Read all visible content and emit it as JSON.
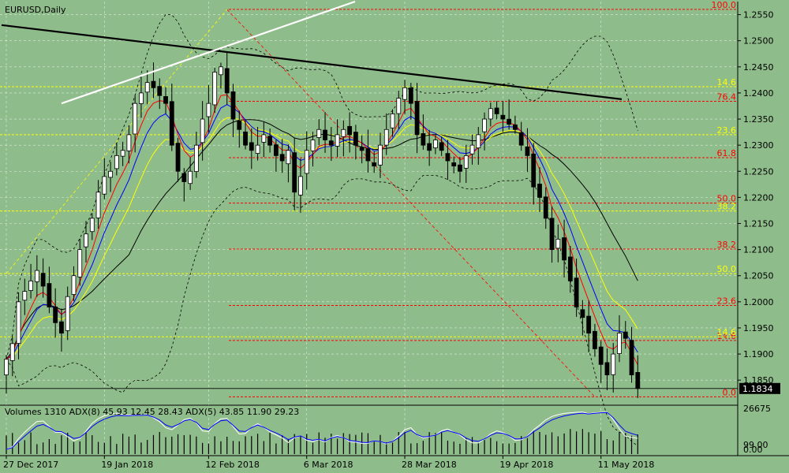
{
  "header": {
    "symbol_label": "EURUSD,Daily"
  },
  "indicator_header": {
    "text": "Volumes 1310 ADX(8) 45.93 12.45 28.43 ADX(5) 43.85 11.90 29.23"
  },
  "colors": {
    "background": "#8fbc8b",
    "grid": "#ffffff",
    "candle": "#000000",
    "ema_red": "#ff0000",
    "ema_blue": "#0000ff",
    "ema_yellow": "#ffff00",
    "sma_black": "#000000",
    "bollinger": "#000000",
    "fibo_red": "#ff0000",
    "fibo_yellow": "#ffff00",
    "trend_black": "#000000",
    "trend_white": "#ffffff",
    "price_label_bg": "#000000",
    "adx_white": "#ffffff",
    "adx_blue": "#0000ff"
  },
  "chart_data": {
    "type": "candlestick",
    "title": "EURUSD,Daily",
    "ylim": [
      1.1805,
      1.2575
    ],
    "price_ticks": [
      "1.2550",
      "1.2500",
      "1.2450",
      "1.2400",
      "1.2350",
      "1.2300",
      "1.2250",
      "1.2200",
      "1.2150",
      "1.2100",
      "1.2050",
      "1.2000",
      "1.1950",
      "1.1900",
      "1.1850"
    ],
    "x_ticks": [
      {
        "index": 0,
        "label": "27 Dec 2017"
      },
      {
        "index": 16,
        "label": "19 Jan 2018"
      },
      {
        "index": 33,
        "label": "12 Feb 2018"
      },
      {
        "index": 49,
        "label": "6 Mar 2018"
      },
      {
        "index": 65,
        "label": "28 Mar 2018"
      },
      {
        "index": 81,
        "label": "19 Apr 2018"
      },
      {
        "index": 97,
        "label": "11 May 2018"
      }
    ],
    "current_price": "1.1834",
    "closes": [
      1.189,
      1.192,
      1.2,
      1.202,
      1.204,
      1.206,
      1.203,
      1.199,
      1.196,
      1.194,
      1.201,
      1.205,
      1.21,
      1.213,
      1.216,
      1.221,
      1.224,
      1.225,
      1.228,
      1.229,
      1.232,
      1.238,
      1.24,
      1.242,
      1.241,
      1.2395,
      1.238,
      1.23,
      1.225,
      1.223,
      1.225,
      1.23,
      1.235,
      1.238,
      1.244,
      1.245,
      1.24,
      1.235,
      1.233,
      1.23,
      1.229,
      1.23,
      1.232,
      1.23,
      1.228,
      1.227,
      1.229,
      1.221,
      1.224,
      1.229,
      1.231,
      1.233,
      1.231,
      1.23,
      1.232,
      1.233,
      1.232,
      1.23,
      1.229,
      1.227,
      1.226,
      1.23,
      1.233,
      1.236,
      1.239,
      1.241,
      1.238,
      1.232,
      1.23,
      1.229,
      1.231,
      1.229,
      1.227,
      1.226,
      1.225,
      1.228,
      1.23,
      1.232,
      1.235,
      1.237,
      1.236,
      1.235,
      1.234,
      1.233,
      1.23,
      1.228,
      1.222,
      1.22,
      1.216,
      1.21,
      1.212,
      1.208,
      1.204,
      1.199,
      1.197,
      1.194,
      1.191,
      1.188,
      1.186,
      1.19,
      1.194,
      1.193,
      1.186,
      1.1834
    ],
    "price_overlays": [
      {
        "name": "EMA 5",
        "style": "ema_red"
      },
      {
        "name": "EMA 8",
        "style": "ema_blue"
      },
      {
        "name": "EMA 13",
        "style": "ema_yellow"
      },
      {
        "name": "SMA 21",
        "style": "sma_black"
      },
      {
        "name": "Bollinger Bands",
        "style": "bollinger"
      }
    ],
    "fibo_red_levels": [
      {
        "label": "100.0",
        "price": 1.256
      },
      {
        "label": "76.4",
        "price": 1.2384
      },
      {
        "label": "61.8",
        "price": 1.2276
      },
      {
        "label": "50.0",
        "price": 1.2189
      },
      {
        "label": "38.2",
        "price": 1.2101
      },
      {
        "label": "23.6",
        "price": 1.1993
      },
      {
        "label": "14.6",
        "price": 1.1926
      },
      {
        "label": "0.0",
        "price": 1.1818
      }
    ],
    "fibo_yellow_levels": [
      {
        "label": "14.6",
        "price": 1.2412
      },
      {
        "label": "23.6",
        "price": 1.232
      },
      {
        "label": "38.2",
        "price": 1.2174
      },
      {
        "label": "50.0",
        "price": 1.2054
      },
      {
        "label": "14.6",
        "price": 1.1933
      }
    ],
    "indicator": {
      "name": "Volumes / ADX",
      "ylim": [
        0,
        26675
      ],
      "ticks": [
        "26675",
        "99.00",
        "0.00"
      ]
    }
  }
}
